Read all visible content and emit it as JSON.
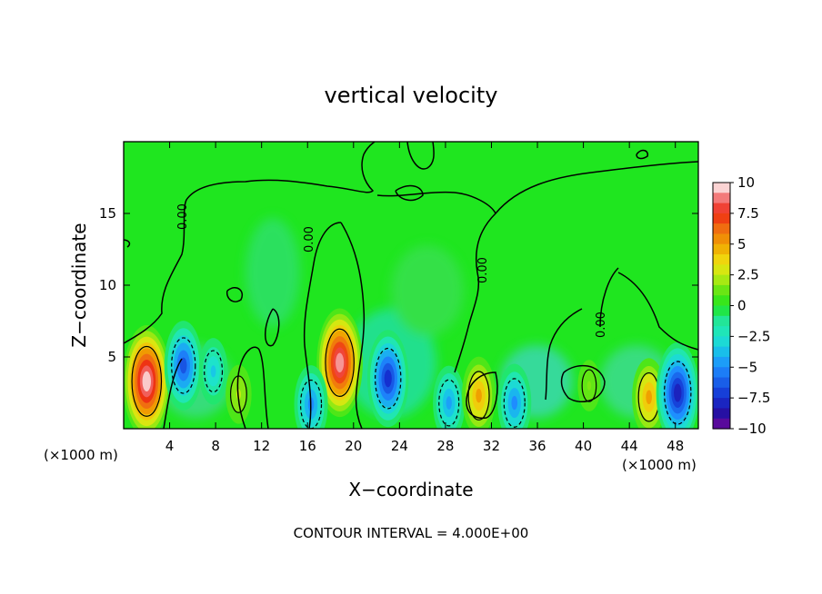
{
  "chart_data": {
    "type": "heatmap",
    "title": "vertical velocity",
    "xlabel": "X−coordinate",
    "ylabel": "Z−coordinate",
    "x_unit_left": "(×1000 m)",
    "x_unit_right": "(×1000 m)",
    "xlim": [
      0,
      50
    ],
    "ylim": [
      0,
      20
    ],
    "x_ticks": [
      "4",
      "8",
      "12",
      "16",
      "20",
      "24",
      "28",
      "32",
      "36",
      "40",
      "44",
      "48"
    ],
    "y_ticks": [
      "5",
      "10",
      "15"
    ],
    "contour_interval_text": "CONTOUR INTERVAL = 4.000E+00",
    "contour_labels": [
      "0.00",
      "0.00",
      "0.00",
      "0.00"
    ],
    "colorbar": {
      "ticks": [
        "10",
        "7.5",
        "5",
        "2.5",
        "0",
        "−2.5",
        "−5",
        "−7.5",
        "−10"
      ],
      "range": [
        -10,
        10
      ]
    },
    "features": [
      {
        "x": 2.0,
        "z": 3.3,
        "w": 9.5
      },
      {
        "x": 18.8,
        "z": 4.6,
        "w": 9.0
      },
      {
        "x": 5.2,
        "z": 4.4,
        "w": -6.5
      },
      {
        "x": 7.8,
        "z": 4.0,
        "w": -3.5
      },
      {
        "x": 16.3,
        "z": 1.7,
        "w": -5.0
      },
      {
        "x": 23.0,
        "z": 3.5,
        "w": -7.5
      },
      {
        "x": 28.3,
        "z": 1.8,
        "w": -4.5
      },
      {
        "x": 30.9,
        "z": 2.3,
        "w": 5.0
      },
      {
        "x": 34.0,
        "z": 1.8,
        "w": -5.0
      },
      {
        "x": 10.0,
        "z": 2.4,
        "w": 2.5
      },
      {
        "x": 45.7,
        "z": 2.2,
        "w": 5.0
      },
      {
        "x": 48.2,
        "z": 2.5,
        "w": -8.0
      },
      {
        "x": 40.5,
        "z": 3.0,
        "w": 1.5
      }
    ]
  }
}
